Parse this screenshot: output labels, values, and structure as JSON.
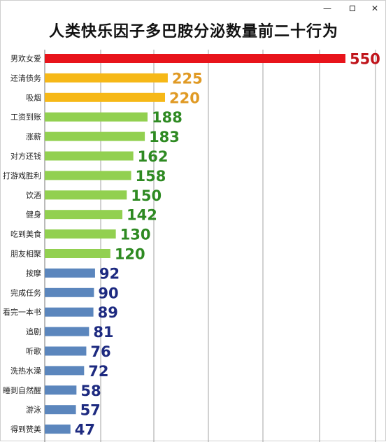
{
  "window": {
    "minimize_glyph": "—",
    "close_glyph": "✕"
  },
  "chart_data": {
    "type": "bar",
    "orientation": "horizontal",
    "title": "人类快乐因子多巴胺分泌数量前二十行为",
    "xlabel": "",
    "ylabel": "",
    "xlim": [
      0,
      550
    ],
    "grid": true,
    "categories": [
      "男欢女爱",
      "还清债务",
      "吸烟",
      "工资到账",
      "涨薪",
      "对方还钱",
      "打游戏胜利",
      "饮酒",
      "健身",
      "吃到美食",
      "朋友相聚",
      "按摩",
      "完成任务",
      "看完一本书",
      "追剧",
      "听歌",
      "洗热水澡",
      "睡到自然醒",
      "游泳",
      "得到赞美"
    ],
    "values": [
      550,
      225,
      220,
      188,
      183,
      162,
      158,
      150,
      142,
      130,
      120,
      92,
      90,
      89,
      81,
      76,
      72,
      58,
      57,
      47
    ],
    "colors": {
      "red": "#e8141b",
      "orange": "#f6b817",
      "green": "#92d050",
      "blue": "#5b86bd",
      "label_red": "#c0141b",
      "label_orange": "#e09a24",
      "label_green": "#2e8a22",
      "label_blue": "#1d2a80",
      "grid": "#8c8c8c"
    },
    "bar_color_groups": [
      "red",
      "orange",
      "orange",
      "green",
      "green",
      "green",
      "green",
      "green",
      "green",
      "green",
      "green",
      "blue",
      "blue",
      "blue",
      "blue",
      "blue",
      "blue",
      "blue",
      "blue",
      "blue"
    ]
  }
}
